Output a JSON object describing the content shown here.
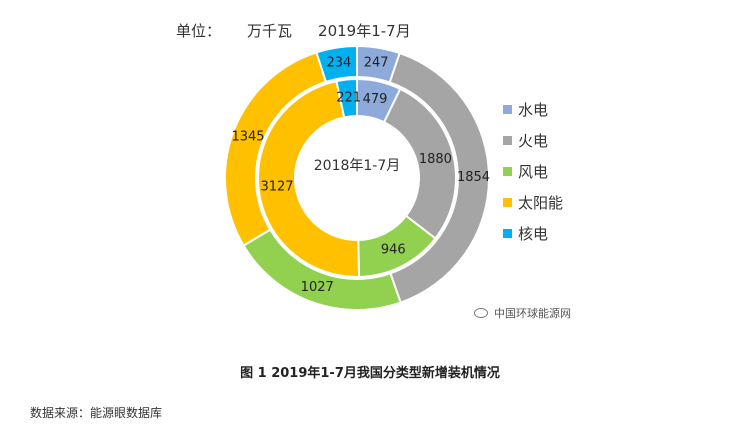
{
  "header": {
    "unit_label": "单位：",
    "unit_value": "万千瓦",
    "period": "2019年1-7月"
  },
  "chart_data": {
    "type": "pie",
    "subtype": "donut",
    "categories": [
      "水电",
      "火电",
      "风电",
      "太阳能",
      "核电"
    ],
    "colors": [
      "#8eaadb",
      "#a5a5a5",
      "#92d050",
      "#ffc000",
      "#00b0f0"
    ],
    "series": [
      {
        "ring": "outer",
        "values": [
          247,
          1854,
          1027,
          1345,
          234
        ]
      },
      {
        "ring": "inner",
        "name": "2018年1-7月",
        "values": [
          479,
          1880,
          946,
          3127,
          221
        ]
      }
    ],
    "legend_position": "right"
  },
  "watermark": "中国环球能源网",
  "caption": "图 1 2019年1-7月我国分类型新增装机情况",
  "source": "数据来源：能源眼数据库"
}
